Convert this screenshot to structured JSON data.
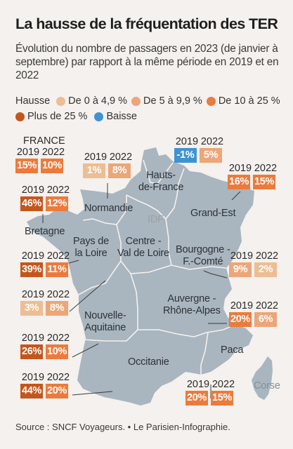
{
  "title": "La hausse de la fréquentation des TER",
  "subtitle": "Évolution du nombre de passagers en 2023 (de janvier à septembre) par rapport à la même période en 2019 et en 2022",
  "legend": {
    "title": "Hausse",
    "items": [
      {
        "label": "De 0 à 4,9 %",
        "color": "#edbd93"
      },
      {
        "label": "De 5 à 9,9 %",
        "color": "#eba679"
      },
      {
        "label": "De 10 à 25 %",
        "color": "#ea7b3d"
      },
      {
        "label": "Plus de 25 %",
        "color": "#c4561c"
      },
      {
        "label": "Baisse",
        "color": "#3e94d2"
      }
    ]
  },
  "years": {
    "y2019": "2019",
    "y2022": "2022"
  },
  "france": {
    "label": "FRANCE",
    "v2019": "15%",
    "v2022": "10%"
  },
  "regions": {
    "normandie": {
      "name": "Normandie",
      "v2019": "1%",
      "v2022": "8%"
    },
    "hdf": {
      "name": "Hauts-\nde-France",
      "name1": "Hauts-",
      "name2": "de-France",
      "v2019": "-1%",
      "v2022": "5%"
    },
    "grand_est": {
      "name": "Grand-Est",
      "v2019": "16%",
      "v2022": "15%"
    },
    "bretagne": {
      "name": "Bretagne",
      "v2019": "46%",
      "v2022": "12%"
    },
    "pdl": {
      "name1": "Pays de",
      "name2": "la Loire",
      "v2019": "39%",
      "v2022": "11%"
    },
    "cvl": {
      "name1": "Centre -",
      "name2": "Val de Loire",
      "v2019": "3%",
      "v2022": "8%"
    },
    "bfc": {
      "name1": "Bourgogne -",
      "name2": "F.-Comté",
      "v2019": "9%",
      "v2022": "2%"
    },
    "nouv_aq": {
      "name1": "Nouvelle-",
      "name2": "Aquitaine",
      "v2019": "26%",
      "v2022": "10%"
    },
    "ara": {
      "name1": "Auvergne -",
      "name2": "Rhône-Alpes",
      "v2019": "20%",
      "v2022": "6%"
    },
    "occitanie": {
      "name": "Occitanie",
      "v2019": "44%",
      "v2022": "20%"
    },
    "paca": {
      "name": "Paca",
      "v2019": "20%",
      "v2022": "15%"
    },
    "idf": {
      "name": "IDF"
    },
    "corse": {
      "name": "Corse"
    }
  },
  "badge_colors": {
    "france_2019": "#ea7b3d",
    "france_2022": "#ea7b3d",
    "normandie_2019": "#edbd93",
    "normandie_2022": "#eba679",
    "hdf_2019": "#3e94d2",
    "hdf_2022": "#eba679",
    "grand_est_2019": "#ea7b3d",
    "grand_est_2022": "#ea7b3d",
    "bretagne_2019": "#c4561c",
    "bretagne_2022": "#ea7b3d",
    "pdl_2019": "#c4561c",
    "pdl_2022": "#ea7b3d",
    "cvl_2019": "#edbd93",
    "cvl_2022": "#eba679",
    "bfc_2019": "#eba679",
    "bfc_2022": "#edbd93",
    "nouv_aq_2019": "#c4561c",
    "nouv_aq_2022": "#ea7b3d",
    "ara_2019": "#ea7b3d",
    "ara_2022": "#eba679",
    "occitanie_2019": "#c4561c",
    "occitanie_2022": "#ea7b3d",
    "paca_2019": "#ea7b3d",
    "paca_2022": "#ea7b3d"
  },
  "map_fill": "#a9b5bf",
  "source": "Source : SNCF Voyageurs. • Le Parisien-Infographie."
}
